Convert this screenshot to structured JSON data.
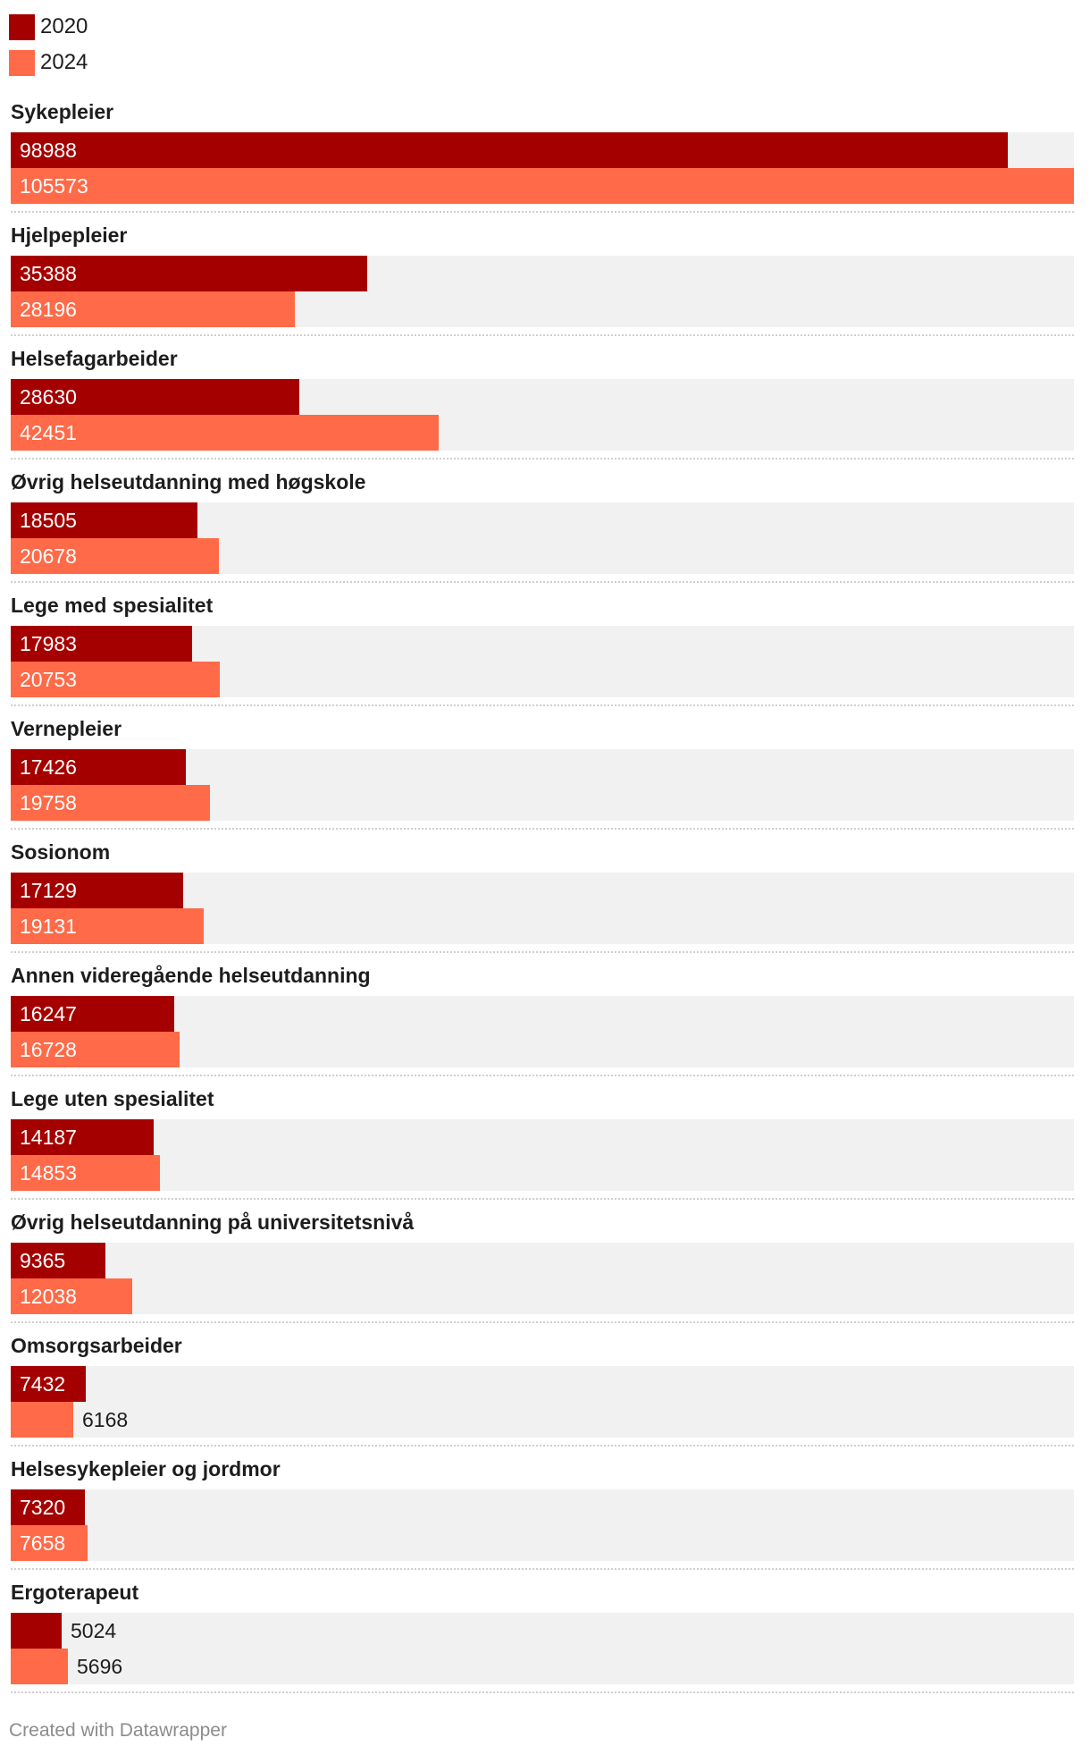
{
  "legend": [
    {
      "label": "2020",
      "color": "#a50000"
    },
    {
      "label": "2024",
      "color": "#ff6a48"
    }
  ],
  "chart_data": {
    "type": "bar",
    "orientation": "horizontal",
    "categories": [
      "Sykepleier",
      "Hjelpepleier",
      "Helsefagarbeider",
      "Øvrig helseutdanning med høgskole",
      "Lege med spesialitet",
      "Vernepleier",
      "Sosionom",
      "Annen videregående helseutdanning",
      "Lege uten spesialitet",
      "Øvrig helseutdanning på universitetsnivå",
      "Omsorgsarbeider",
      "Helsesykepleier og jordmor",
      "Ergoterapeut"
    ],
    "series": [
      {
        "name": "2020",
        "color": "#a50000",
        "values": [
          98988,
          35388,
          28630,
          18505,
          17983,
          17426,
          17129,
          16247,
          14187,
          9365,
          7432,
          7320,
          5024
        ]
      },
      {
        "name": "2024",
        "color": "#ff6a48",
        "values": [
          105573,
          28196,
          42451,
          20678,
          20753,
          19758,
          19131,
          16728,
          14853,
          12038,
          6168,
          7658,
          5696
        ]
      }
    ],
    "xlim": [
      0,
      105573
    ],
    "legend_position": "top-left",
    "grid": false
  },
  "footer": {
    "credit": "Created with Datawrapper"
  }
}
